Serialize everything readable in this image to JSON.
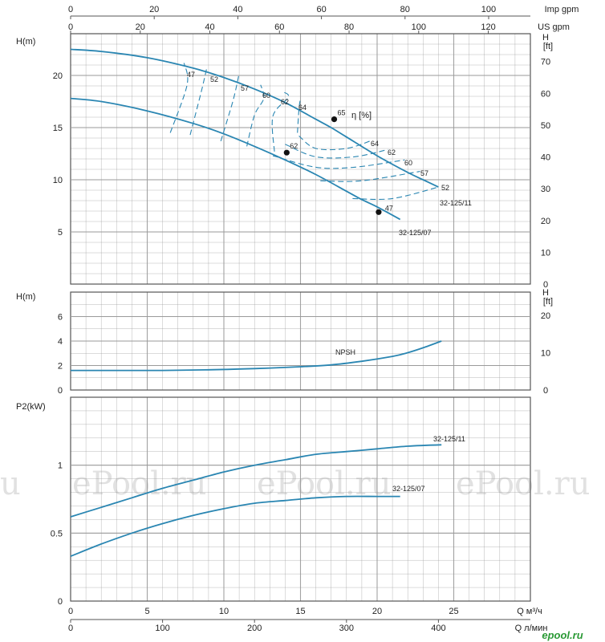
{
  "colors": {
    "curve": "#2a86b2",
    "grid": "#9a9a9a",
    "frame": "#555555",
    "text": "#222222",
    "watermark": "#d8d8d8",
    "logo": "#2b9a36"
  },
  "top_axes": {
    "imp": {
      "unit": "Imp gpm",
      "ticks": [
        "0",
        "20",
        "40",
        "60",
        "80",
        "100"
      ]
    },
    "us": {
      "unit": "US gpm",
      "ticks": [
        "0",
        "20",
        "40",
        "60",
        "80",
        "100",
        "120"
      ]
    }
  },
  "bottom_axes": {
    "m3h": {
      "unit": "Q  м³/ч",
      "ticks": [
        "0",
        "5",
        "10",
        "15",
        "20",
        "25"
      ]
    },
    "lmin": {
      "unit": "Q  л/мин",
      "ticks": [
        "0",
        "100",
        "200",
        "300",
        "400"
      ]
    }
  },
  "watermarks": [
    "u",
    "ePool.ru",
    "ePool.ru",
    "ePool.ru"
  ],
  "logo_text": "epool.ru",
  "chart_data": [
    {
      "type": "line",
      "panel": "head",
      "ylabel": "H(m)",
      "ylabel_right": "H [ft]",
      "xlabel": "Q м³/ч",
      "xlim": [
        0,
        30
      ],
      "ylim": [
        0,
        24
      ],
      "yticks": [
        "5",
        "10",
        "15",
        "20"
      ],
      "yticks_right": [
        "0",
        "10",
        "20",
        "30",
        "40",
        "50",
        "60",
        "70"
      ],
      "efficiency_label": "η [%]",
      "series": [
        {
          "name": "32-125/11",
          "x": [
            0,
            2,
            5,
            8,
            10,
            12,
            14,
            16,
            17,
            18,
            20,
            22,
            23,
            24
          ],
          "y": [
            22.5,
            22.3,
            21.7,
            20.7,
            19.8,
            18.7,
            17.4,
            15.8,
            15,
            14.1,
            12.3,
            10.7,
            10,
            9.3
          ]
        },
        {
          "name": "32-125/07",
          "x": [
            0,
            2,
            5,
            8,
            10,
            12,
            14,
            16,
            18,
            19,
            20,
            21.5
          ],
          "y": [
            17.8,
            17.5,
            16.6,
            15.4,
            14.4,
            13.2,
            11.9,
            10.5,
            8.9,
            8.1,
            7.4,
            6.2
          ]
        }
      ],
      "efficiency_lines": [
        {
          "label": "47",
          "x": [
            6.5,
            7.6,
            7.4
          ],
          "y": [
            14.5,
            19.1,
            21.2
          ]
        },
        {
          "label": "52",
          "x": [
            7.8,
            8.5,
            8.9
          ],
          "y": [
            14.3,
            18.3,
            20.8
          ]
        },
        {
          "label": "57",
          "x": [
            9.8,
            10.6,
            11.0
          ],
          "y": [
            13.7,
            17.6,
            20.2
          ]
        },
        {
          "label": "60",
          "x": [
            11.5,
            12.0,
            12.6,
            12.4
          ],
          "y": [
            13.2,
            16.2,
            17.8,
            19.1
          ]
        },
        {
          "label": "62",
          "x": [
            13.3,
            13.2,
            14.2,
            13.9
          ],
          "y": [
            12.7,
            16.1,
            17.9,
            18.4
          ]
        },
        {
          "label": "64",
          "x": [
            14.8,
            14.9,
            15.0
          ],
          "y": [
            14.5,
            16.8,
            17.8
          ]
        },
        {
          "label": "64",
          "x": [
            14.9,
            16.0,
            18.0,
            19.7
          ],
          "y": [
            14.2,
            13.0,
            13.0,
            13.8
          ]
        },
        {
          "label": "62",
          "x": [
            14.0,
            16.0,
            18.5,
            20.7
          ],
          "y": [
            13.4,
            12.2,
            12.2,
            12.9
          ]
        },
        {
          "label": "60",
          "x": [
            13.2,
            16.0,
            18.5,
            21.8
          ],
          "y": [
            12.3,
            11.2,
            11.2,
            11.9
          ]
        },
        {
          "label": "57",
          "x": [
            16.3,
            19.0,
            22.8
          ],
          "y": [
            9.9,
            9.9,
            10.8
          ]
        },
        {
          "label": "52",
          "x": [
            18.4,
            21.0,
            24.0
          ],
          "y": [
            8.2,
            8.2,
            9.3
          ]
        }
      ],
      "bep_points": [
        {
          "label": "65",
          "x": 17.2,
          "y": 15.8
        },
        {
          "label": "62",
          "x": 14.1,
          "y": 12.6
        },
        {
          "label": "47",
          "x": 20.1,
          "y": 6.9
        }
      ]
    },
    {
      "type": "line",
      "panel": "npsh",
      "ylabel": "H(m)",
      "ylabel_right": "H [ft]",
      "xlim": [
        0,
        30
      ],
      "ylim": [
        0,
        8
      ],
      "yticks": [
        "0",
        "2",
        "4",
        "6"
      ],
      "yticks_right": [
        "0",
        "10",
        "20"
      ],
      "series": [
        {
          "name": "NPSH",
          "x": [
            0,
            3,
            6,
            9,
            12,
            15,
            17,
            19,
            21,
            22,
            23,
            24.2
          ],
          "y": [
            1.6,
            1.6,
            1.6,
            1.65,
            1.75,
            1.9,
            2.05,
            2.35,
            2.75,
            3.05,
            3.45,
            4.0
          ]
        }
      ]
    },
    {
      "type": "line",
      "panel": "power",
      "ylabel": "P2(kW)",
      "xlabel": "Q м³/ч",
      "xlim": [
        0,
        30
      ],
      "ylim": [
        0,
        1.5
      ],
      "yticks": [
        "0",
        "0.5",
        "1"
      ],
      "series": [
        {
          "name": "32-125/11",
          "x": [
            0,
            2,
            4,
            6,
            8,
            10,
            12,
            14,
            16,
            18,
            20,
            22,
            24.2
          ],
          "y": [
            0.62,
            0.69,
            0.76,
            0.83,
            0.89,
            0.95,
            1.0,
            1.04,
            1.08,
            1.1,
            1.12,
            1.14,
            1.15
          ]
        },
        {
          "name": "32-125/07",
          "x": [
            0,
            2,
            4,
            6,
            8,
            10,
            12,
            14,
            16,
            18,
            20,
            21.5
          ],
          "y": [
            0.33,
            0.42,
            0.5,
            0.57,
            0.63,
            0.68,
            0.72,
            0.74,
            0.76,
            0.77,
            0.77,
            0.77
          ]
        }
      ]
    }
  ]
}
